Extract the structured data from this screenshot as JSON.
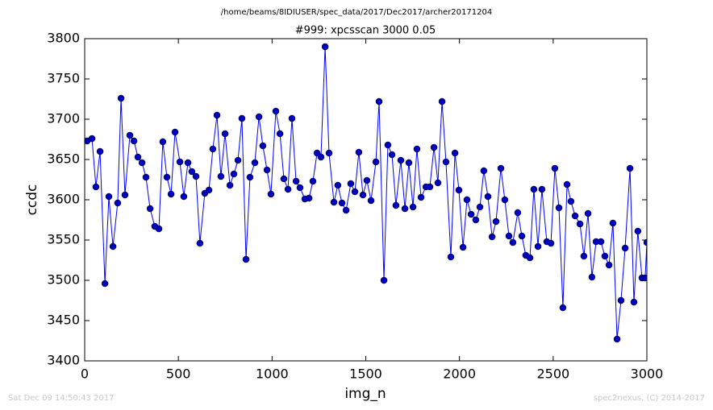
{
  "chart_data": {
    "type": "line",
    "suptitle": "/home/beams/8IDIUSER/spec_data/2017/Dec2017/archer20171204",
    "title": "#999: xpcsscan 3000 0.05",
    "xlabel": "img_n",
    "ylabel": "ccdc",
    "footer_left": "Sat Dec 09 14:50:43 2017",
    "footer_right": "spec2nexus, (C) 2014-2017",
    "xlim": [
      0,
      3000
    ],
    "xticks": [
      0,
      500,
      1000,
      1500,
      2000,
      2500,
      3000
    ],
    "ylim": [
      3400,
      3800
    ],
    "yticks": [
      3400,
      3450,
      3500,
      3550,
      3600,
      3650,
      3700,
      3750,
      3800
    ],
    "grid": false,
    "x": [
      13,
      39,
      60,
      82,
      108,
      129,
      151,
      176,
      194,
      215,
      241,
      263,
      284,
      306,
      327,
      349,
      374,
      396,
      417,
      439,
      461,
      482,
      508,
      529,
      551,
      572,
      594,
      615,
      641,
      663,
      684,
      706,
      727,
      749,
      775,
      796,
      818,
      839,
      861,
      882,
      908,
      930,
      951,
      973,
      994,
      1020,
      1042,
      1063,
      1085,
      1106,
      1128,
      1149,
      1175,
      1197,
      1218,
      1240,
      1261,
      1283,
      1304,
      1330,
      1351,
      1373,
      1395,
      1420,
      1442,
      1463,
      1485,
      1506,
      1528,
      1554,
      1571,
      1597,
      1618,
      1640,
      1661,
      1687,
      1709,
      1730,
      1752,
      1773,
      1795,
      1821,
      1842,
      1864,
      1885,
      1907,
      1928,
      1954,
      1976,
      1997,
      2019,
      2040,
      2062,
      2087,
      2109,
      2130,
      2152,
      2174,
      2195,
      2221,
      2242,
      2264,
      2285,
      2311,
      2333,
      2354,
      2376,
      2397,
      2419,
      2440,
      2466,
      2488,
      2509,
      2531,
      2552,
      2574,
      2595,
      2617,
      2643,
      2664,
      2686,
      2707,
      2729,
      2755,
      2776,
      2798,
      2819,
      2841,
      2862,
      2884,
      2910,
      2931,
      2952,
      2974,
      2991,
      3000
    ],
    "series": [
      {
        "color": "#0000ff",
        "marker_color": "#0000bf",
        "values": [
          3673,
          3676,
          3616,
          3660,
          3496,
          3604,
          3542,
          3596,
          3726,
          3606,
          3680,
          3673,
          3653,
          3646,
          3628,
          3589,
          3567,
          3564,
          3672,
          3628,
          3607,
          3684,
          3647,
          3604,
          3646,
          3635,
          3629,
          3546,
          3608,
          3612,
          3663,
          3705,
          3629,
          3682,
          3618,
          3632,
          3649,
          3701,
          3526,
          3628,
          3646,
          3703,
          3667,
          3637,
          3607,
          3710,
          3682,
          3626,
          3613,
          3701,
          3623,
          3615,
          3601,
          3602,
          3623,
          3658,
          3653,
          3790,
          3658,
          3597,
          3618,
          3596,
          3587,
          3620,
          3610,
          3659,
          3606,
          3624,
          3599,
          3647,
          3722,
          3500,
          3668,
          3656,
          3593,
          3649,
          3589,
          3646,
          3591,
          3663,
          3603,
          3616,
          3616,
          3665,
          3621,
          3722,
          3647,
          3529,
          3658,
          3612,
          3541,
          3600,
          3582,
          3575,
          3591,
          3636,
          3604,
          3554,
          3573,
          3639,
          3600,
          3555,
          3547,
          3584,
          3555,
          3531,
          3528,
          3613,
          3542,
          3613,
          3548,
          3546,
          3639,
          3590,
          3466,
          3619,
          3598,
          3580,
          3570,
          3530,
          3583,
          3504,
          3548,
          3548,
          3530,
          3519,
          3571,
          3427,
          3475,
          3540,
          3639,
          3473,
          3561,
          3503,
          3503,
          3547
        ]
      }
    ]
  }
}
